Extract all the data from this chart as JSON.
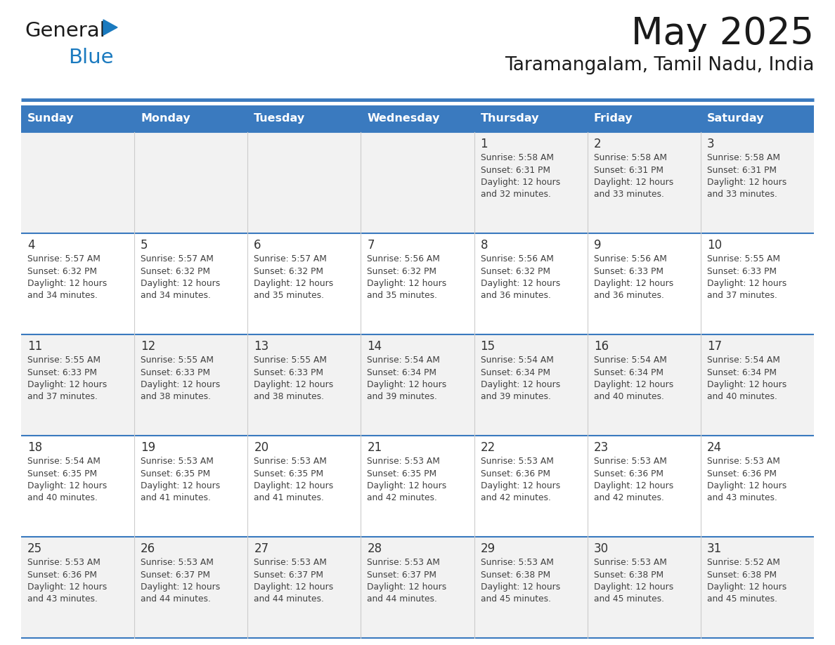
{
  "title": "May 2025",
  "subtitle": "Taramangalam, Tamil Nadu, India",
  "header_bg_color": "#3a7abf",
  "header_text_color": "#ffffff",
  "row_bg_even": "#f2f2f2",
  "row_bg_odd": "#ffffff",
  "separator_line_color": "#3a7abf",
  "cell_text_color": "#404040",
  "day_number_color": "#333333",
  "day_names": [
    "Sunday",
    "Monday",
    "Tuesday",
    "Wednesday",
    "Thursday",
    "Friday",
    "Saturday"
  ],
  "calendar_data": [
    [
      "",
      "",
      "",
      "",
      "1\nSunrise: 5:58 AM\nSunset: 6:31 PM\nDaylight: 12 hours\nand 32 minutes.",
      "2\nSunrise: 5:58 AM\nSunset: 6:31 PM\nDaylight: 12 hours\nand 33 minutes.",
      "3\nSunrise: 5:58 AM\nSunset: 6:31 PM\nDaylight: 12 hours\nand 33 minutes."
    ],
    [
      "4\nSunrise: 5:57 AM\nSunset: 6:32 PM\nDaylight: 12 hours\nand 34 minutes.",
      "5\nSunrise: 5:57 AM\nSunset: 6:32 PM\nDaylight: 12 hours\nand 34 minutes.",
      "6\nSunrise: 5:57 AM\nSunset: 6:32 PM\nDaylight: 12 hours\nand 35 minutes.",
      "7\nSunrise: 5:56 AM\nSunset: 6:32 PM\nDaylight: 12 hours\nand 35 minutes.",
      "8\nSunrise: 5:56 AM\nSunset: 6:32 PM\nDaylight: 12 hours\nand 36 minutes.",
      "9\nSunrise: 5:56 AM\nSunset: 6:33 PM\nDaylight: 12 hours\nand 36 minutes.",
      "10\nSunrise: 5:55 AM\nSunset: 6:33 PM\nDaylight: 12 hours\nand 37 minutes."
    ],
    [
      "11\nSunrise: 5:55 AM\nSunset: 6:33 PM\nDaylight: 12 hours\nand 37 minutes.",
      "12\nSunrise: 5:55 AM\nSunset: 6:33 PM\nDaylight: 12 hours\nand 38 minutes.",
      "13\nSunrise: 5:55 AM\nSunset: 6:33 PM\nDaylight: 12 hours\nand 38 minutes.",
      "14\nSunrise: 5:54 AM\nSunset: 6:34 PM\nDaylight: 12 hours\nand 39 minutes.",
      "15\nSunrise: 5:54 AM\nSunset: 6:34 PM\nDaylight: 12 hours\nand 39 minutes.",
      "16\nSunrise: 5:54 AM\nSunset: 6:34 PM\nDaylight: 12 hours\nand 40 minutes.",
      "17\nSunrise: 5:54 AM\nSunset: 6:34 PM\nDaylight: 12 hours\nand 40 minutes."
    ],
    [
      "18\nSunrise: 5:54 AM\nSunset: 6:35 PM\nDaylight: 12 hours\nand 40 minutes.",
      "19\nSunrise: 5:53 AM\nSunset: 6:35 PM\nDaylight: 12 hours\nand 41 minutes.",
      "20\nSunrise: 5:53 AM\nSunset: 6:35 PM\nDaylight: 12 hours\nand 41 minutes.",
      "21\nSunrise: 5:53 AM\nSunset: 6:35 PM\nDaylight: 12 hours\nand 42 minutes.",
      "22\nSunrise: 5:53 AM\nSunset: 6:36 PM\nDaylight: 12 hours\nand 42 minutes.",
      "23\nSunrise: 5:53 AM\nSunset: 6:36 PM\nDaylight: 12 hours\nand 42 minutes.",
      "24\nSunrise: 5:53 AM\nSunset: 6:36 PM\nDaylight: 12 hours\nand 43 minutes."
    ],
    [
      "25\nSunrise: 5:53 AM\nSunset: 6:36 PM\nDaylight: 12 hours\nand 43 minutes.",
      "26\nSunrise: 5:53 AM\nSunset: 6:37 PM\nDaylight: 12 hours\nand 44 minutes.",
      "27\nSunrise: 5:53 AM\nSunset: 6:37 PM\nDaylight: 12 hours\nand 44 minutes.",
      "28\nSunrise: 5:53 AM\nSunset: 6:37 PM\nDaylight: 12 hours\nand 44 minutes.",
      "29\nSunrise: 5:53 AM\nSunset: 6:38 PM\nDaylight: 12 hours\nand 45 minutes.",
      "30\nSunrise: 5:53 AM\nSunset: 6:38 PM\nDaylight: 12 hours\nand 45 minutes.",
      "31\nSunrise: 5:52 AM\nSunset: 6:38 PM\nDaylight: 12 hours\nand 45 minutes."
    ]
  ],
  "logo_general_color": "#1a1a1a",
  "logo_blue_color": "#1a7abf",
  "logo_triangle_color": "#1a7abf",
  "fig_width": 11.88,
  "fig_height": 9.18,
  "dpi": 100
}
